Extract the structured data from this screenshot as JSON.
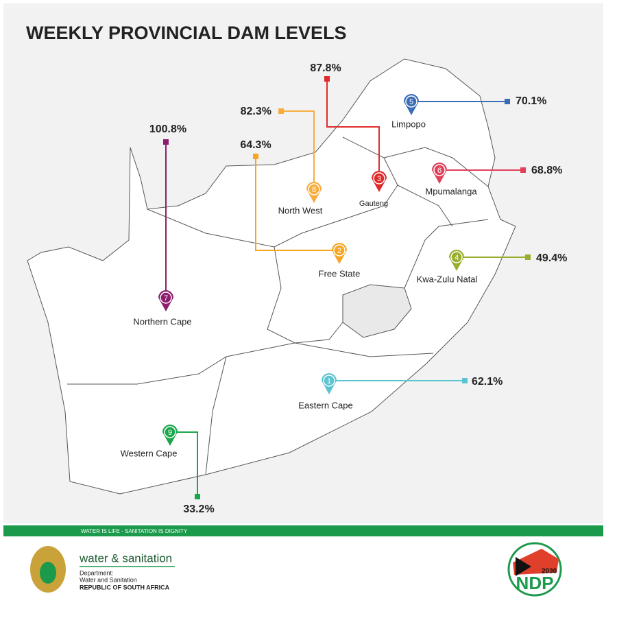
{
  "title": "WEEKLY PROVINCIAL DAM LEVELS",
  "provinces": [
    {
      "number": "1",
      "name": "Eastern Cape",
      "level": "62.1%",
      "color": "#5bc4d1"
    },
    {
      "number": "2",
      "name": "Free State",
      "level": "64.3%",
      "color": "#f5a623"
    },
    {
      "number": "3",
      "name": "Gauteng",
      "level": "87.8%",
      "color": "#e02b2b"
    },
    {
      "number": "4",
      "name": "Kwa-Zulu Natal",
      "level": "49.4%",
      "color": "#9aad2e"
    },
    {
      "number": "5",
      "name": "Limpopo",
      "level": "70.1%",
      "color": "#3a6db5"
    },
    {
      "number": "6",
      "name": "Mpumalanga",
      "level": "68.8%",
      "color": "#e0405a"
    },
    {
      "number": "7",
      "name": "Northern Cape",
      "level": "100.8%",
      "color": "#8e1d6d"
    },
    {
      "number": "8",
      "name": "North West",
      "level": "82.3%",
      "color": "#f7ad3e"
    },
    {
      "number": "9",
      "name": "Western Cape",
      "level": "33.2%",
      "color": "#1aa64a"
    }
  ],
  "footer": {
    "slogan": "WATER IS LIFE - SANITATION IS DIGNITY",
    "brand": "water & sanitation",
    "department": [
      "Department:",
      "Water and Sanitation",
      "REPUBLIC OF SOUTH AFRICA"
    ],
    "ndp_year": "2030",
    "ndp": "NDP"
  }
}
